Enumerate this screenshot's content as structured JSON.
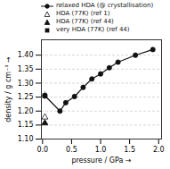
{
  "chart_data": {
    "type": "line",
    "xlabel": "pressure / GPa",
    "ylabel": "density / g cm⁻³",
    "xlim": [
      -0.02,
      2.05
    ],
    "ylim": [
      1.1,
      1.455
    ],
    "xticks": [
      {
        "value": 0.0,
        "label": "0.0"
      },
      0.5,
      {
        "value": 1.0,
        "label": "1.0"
      },
      1.5,
      {
        "value": 2.0,
        "label": "2.0"
      }
    ],
    "yticks": [
      {
        "value": 1.1,
        "label": "1.10"
      },
      1.15,
      {
        "value": 1.2,
        "label": "1.20"
      },
      1.25,
      {
        "value": 1.3,
        "label": "1.30"
      },
      1.35,
      {
        "value": 1.4,
        "label": "1.40"
      }
    ],
    "grid": true,
    "legend": "top",
    "series": [
      {
        "name": "relaxed HDA (@ crystallisation)",
        "type": "line",
        "color": "#111111",
        "marker": "circle",
        "line_style": "solid",
        "x": [
          0.04,
          0.3,
          0.4,
          0.55,
          0.7,
          0.85,
          1.0,
          1.15,
          1.3,
          1.6,
          1.9
        ],
        "values": [
          1.255,
          1.2,
          1.23,
          1.252,
          1.285,
          1.315,
          1.333,
          1.355,
          1.375,
          1.4,
          1.42
        ],
        "errors": [
          0.013,
          null,
          null,
          null,
          null,
          null,
          null,
          null,
          null,
          null,
          null
        ]
      },
      {
        "name": "HDA (77K) (ref 1)",
        "type": "scatter",
        "color": "#111111",
        "marker": "triangle-open",
        "x": [
          0.04
        ],
        "values": [
          1.178
        ]
      },
      {
        "name": "HDA (77K) (ref 44)",
        "type": "scatter",
        "color": "#111111",
        "marker": "triangle",
        "x": [
          0.04
        ],
        "values": [
          1.157
        ]
      },
      {
        "name": "very HDA (77K) (ref 44)",
        "type": "scatter",
        "color": "#111111",
        "marker": "square",
        "x": [
          0.04
        ],
        "values": [
          1.255
        ]
      }
    ]
  }
}
